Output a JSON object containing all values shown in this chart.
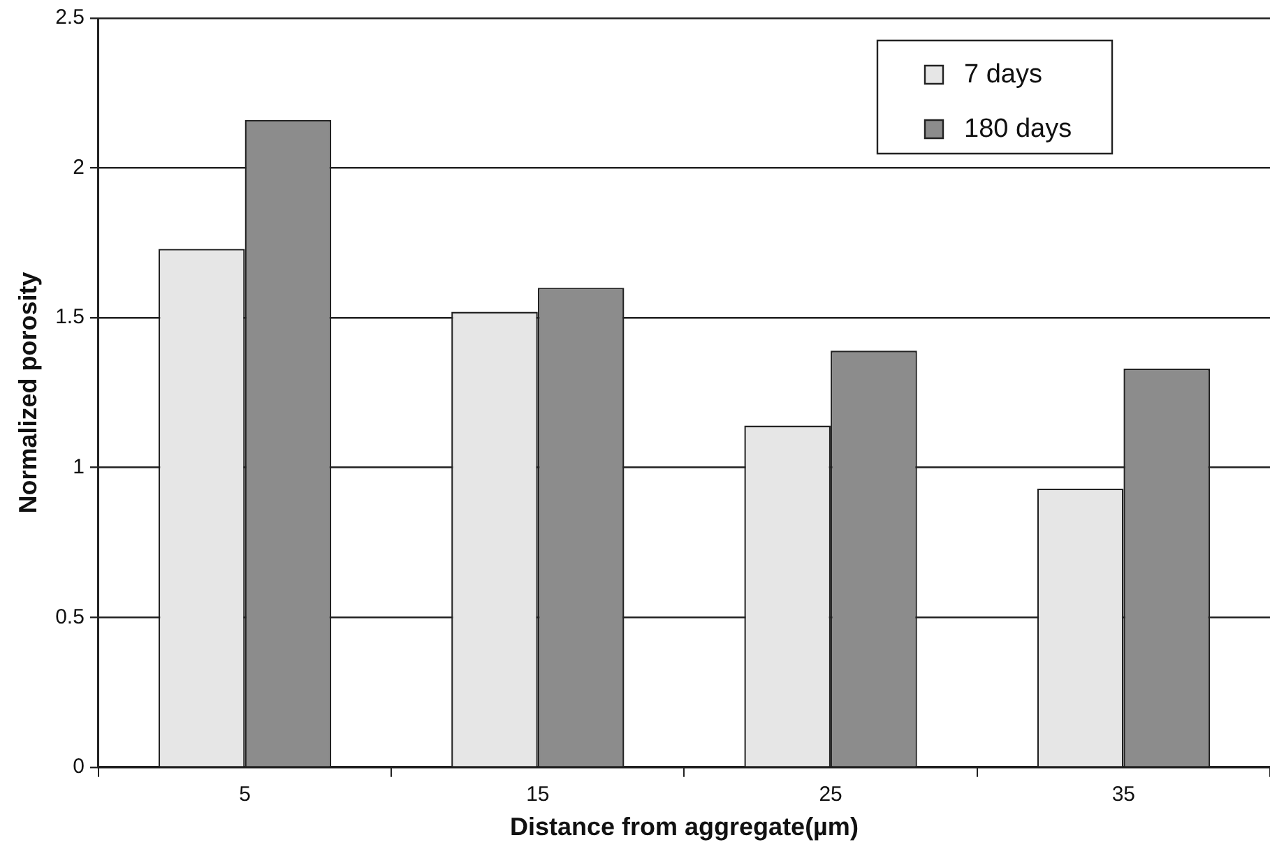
{
  "chart_data": {
    "type": "bar",
    "xlabel": "Distance from aggregate(µm)",
    "ylabel": "Normalized porosity",
    "categories": [
      "5",
      "15",
      "25",
      "35"
    ],
    "series": [
      {
        "name": "7 days",
        "color": "#e6e6e6",
        "values": [
          1.73,
          1.52,
          1.14,
          0.93
        ]
      },
      {
        "name": "180 days",
        "color": "#8c8c8c",
        "values": [
          2.16,
          1.6,
          1.39,
          1.33
        ]
      }
    ],
    "ylim": [
      0,
      2.5
    ],
    "yticks": [
      0,
      0.5,
      1,
      1.5,
      2,
      2.5
    ],
    "grid": "y",
    "legend": "top right"
  }
}
